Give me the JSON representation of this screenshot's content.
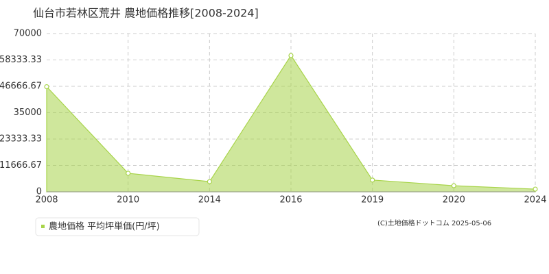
{
  "chart_data": {
    "type": "area",
    "title": "仙台市若林区荒井 農地価格推移[2008-2024]",
    "categories": [
      "2008",
      "2010",
      "2014",
      "2016",
      "2019",
      "2020",
      "2024"
    ],
    "series": [
      {
        "name": "農地価格 平均坪単価(円/坪)",
        "color": "#a8d44a",
        "values": [
          46500,
          8200,
          4500,
          60300,
          5200,
          2700,
          1200
        ]
      }
    ],
    "ylim": [
      0,
      70000
    ],
    "yticks": [
      0,
      11666.67,
      23333.33,
      35000,
      46666.67,
      58333.33,
      70000
    ],
    "grid": true,
    "copyright": "(C)土地価格ドットコム 2025-05-06"
  }
}
